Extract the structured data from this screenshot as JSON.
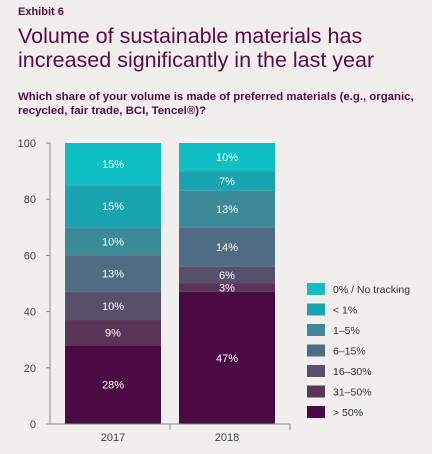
{
  "exhibit": "Exhibit 6",
  "title": "Volume of sustainable materials has increased significantly in the last year",
  "subtitle": "Which share of your volume is made of preferred materials (e.g., organic, recycled, fair trade, BCI, Tencel®)?",
  "colors": {
    "0% / No tracking": "#0fbfc3",
    "< 1%": "#1aa3b0",
    "1–5%": "#3b8a98",
    "6–15%": "#4f6d82",
    "16–30%": "#584f6c",
    "31–50%": "#5a3557",
    "> 50%": "#4a0a44"
  },
  "chart_data": {
    "type": "bar",
    "stacked": true,
    "categories": [
      "2017",
      "2018"
    ],
    "ylim": [
      0,
      100
    ],
    "yticks": [
      0,
      20,
      40,
      60,
      80,
      100
    ],
    "xlabel": "",
    "ylabel": "",
    "legend_position": "right",
    "series": [
      {
        "name": "> 50%",
        "values": [
          28,
          47
        ],
        "labels": [
          "28%",
          "47%"
        ]
      },
      {
        "name": "31–50%",
        "values": [
          9,
          3
        ],
        "labels": [
          "9%",
          "3%"
        ]
      },
      {
        "name": "16–30%",
        "values": [
          10,
          6
        ],
        "labels": [
          "10%",
          "6%"
        ]
      },
      {
        "name": "6–15%",
        "values": [
          13,
          14
        ],
        "labels": [
          "13%",
          "14%"
        ]
      },
      {
        "name": "1–5%",
        "values": [
          10,
          13
        ],
        "labels": [
          "10%",
          "13%"
        ]
      },
      {
        "name": "< 1%",
        "values": [
          15,
          7
        ],
        "labels": [
          "15%",
          "7%"
        ]
      },
      {
        "name": "0% / No tracking",
        "values": [
          15,
          10
        ],
        "labels": [
          "15%",
          "10%"
        ]
      }
    ],
    "legend": [
      "0% / No tracking",
      "< 1%",
      "1–5%",
      "6–15%",
      "16–30%",
      "31–50%",
      "> 50%"
    ]
  }
}
